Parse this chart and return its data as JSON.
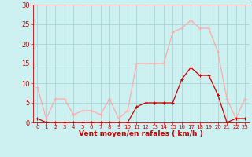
{
  "hours": [
    0,
    1,
    2,
    3,
    4,
    5,
    6,
    7,
    8,
    9,
    10,
    11,
    12,
    13,
    14,
    15,
    16,
    17,
    18,
    19,
    20,
    21,
    22,
    23
  ],
  "wind_avg": [
    1,
    0,
    0,
    0,
    0,
    0,
    0,
    0,
    0,
    0,
    0,
    4,
    5,
    5,
    5,
    5,
    11,
    14,
    12,
    12,
    7,
    0,
    1,
    1
  ],
  "wind_gust": [
    9,
    1,
    6,
    6,
    2,
    3,
    3,
    2,
    6,
    1,
    3,
    15,
    15,
    15,
    15,
    23,
    24,
    26,
    24,
    24,
    18,
    6,
    1,
    6
  ],
  "avg_color": "#cc0000",
  "gust_color": "#ffaaaa",
  "bg_color": "#cdf0f0",
  "grid_color": "#aad4d4",
  "tick_color": "#cc0000",
  "xlabel": "Vent moyen/en rafales ( km/h )",
  "xlabel_color": "#cc0000",
  "ylim": [
    0,
    30
  ],
  "yticks": [
    0,
    5,
    10,
    15,
    20,
    25,
    30
  ],
  "marker": "+"
}
